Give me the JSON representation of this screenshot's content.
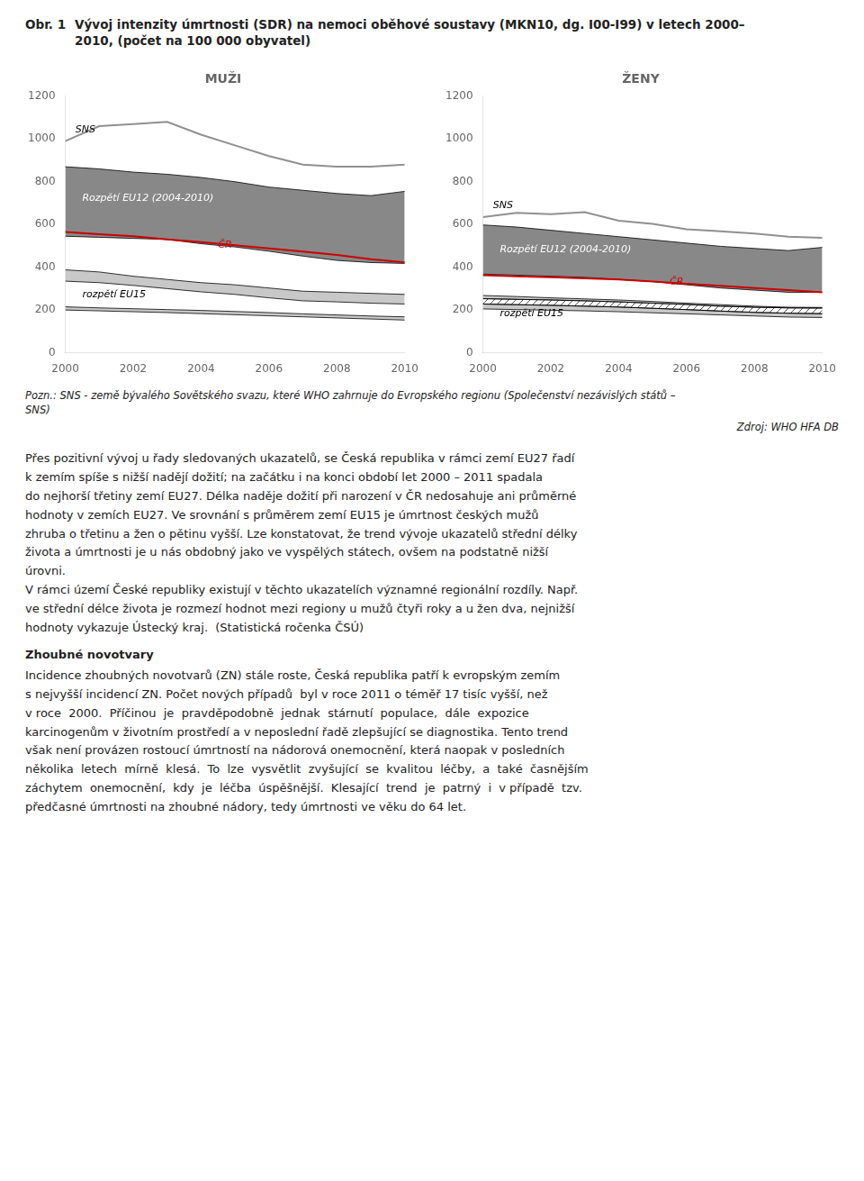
{
  "title": "Obr. 1",
  "subtitle": "Vývoj intenzity úmrtnosti (SDR) na nemoci oběhové soustavy (MKN10, dg. I00-I99) v letech 2000–\n2010, (počet na 100 000 obyvatel)",
  "chart_data": [
    {
      "type": "line",
      "title": "MUŽI",
      "x": [
        2000,
        2001,
        2002,
        2003,
        2004,
        2005,
        2006,
        2007,
        2008,
        2009,
        2010
      ],
      "xlim": [
        2000,
        2010
      ],
      "xticks": [
        2000,
        2002,
        2004,
        2006,
        2008,
        2010
      ],
      "ylim": [
        0,
        1200
      ],
      "yticks": [
        0,
        200,
        400,
        600,
        800,
        1000,
        1200
      ],
      "grid": false,
      "series": [
        {
          "type": "band",
          "color": "#888888",
          "upper": [
            870,
            860,
            845,
            835,
            820,
            800,
            775,
            760,
            745,
            735,
            755
          ],
          "lower": [
            545,
            540,
            535,
            530,
            510,
            495,
            475,
            452,
            432,
            422,
            418
          ]
        },
        {
          "type": "band",
          "color": "#c8c8c8",
          "upper": [
            388,
            378,
            358,
            343,
            328,
            318,
            303,
            288,
            283,
            278,
            273
          ],
          "lower": [
            335,
            328,
            315,
            300,
            285,
            273,
            257,
            243,
            238,
            232,
            228
          ]
        },
        {
          "type": "band",
          "color": "#c8c8c8",
          "upper": [
            215,
            210,
            206,
            202,
            198,
            193,
            188,
            182,
            177,
            172,
            168
          ],
          "lower": [
            200,
            196,
            192,
            188,
            183,
            178,
            173,
            168,
            163,
            158,
            153
          ]
        },
        {
          "type": "line",
          "color": "#909090",
          "values": [
            990,
            1060,
            1070,
            1080,
            1020,
            970,
            920,
            880,
            870,
            870,
            880
          ]
        },
        {
          "type": "line",
          "color": "#cc0000",
          "values": [
            565,
            555,
            545,
            530,
            518,
            503,
            488,
            473,
            458,
            438,
            423
          ]
        }
      ],
      "annotations": [
        {
          "text": "SNS",
          "x": 2000.3,
          "y": 1020,
          "color": "#000000"
        },
        {
          "text": "Rozpětí EU12 (2004-2010)",
          "x": 2000.5,
          "y": 700,
          "color": "#ffffff"
        },
        {
          "text": "ČR",
          "x": 2004.5,
          "y": 480,
          "color": "#cc0000"
        },
        {
          "text": "rozpětí EU15",
          "x": 2000.5,
          "y": 250,
          "color": "#000000"
        }
      ]
    },
    {
      "type": "line",
      "title": "ŽENY",
      "x": [
        2000,
        2001,
        2002,
        2003,
        2004,
        2005,
        2006,
        2007,
        2008,
        2009,
        2010
      ],
      "xlim": [
        2000,
        2010
      ],
      "xticks": [
        2000,
        2002,
        2004,
        2006,
        2008,
        2010
      ],
      "ylim": [
        0,
        1200
      ],
      "yticks": [
        0,
        200,
        400,
        600,
        800,
        1000,
        1200
      ],
      "grid": false,
      "series": [
        {
          "type": "band",
          "color": "#888888",
          "upper": [
            598,
            588,
            573,
            558,
            543,
            528,
            513,
            498,
            488,
            478,
            493
          ],
          "lower": [
            368,
            363,
            358,
            353,
            343,
            333,
            318,
            303,
            293,
            283,
            283
          ]
        },
        {
          "type": "band",
          "color": "#c8c8c8",
          "upper": [
            268,
            263,
            257,
            252,
            247,
            240,
            232,
            225,
            218,
            213,
            212
          ],
          "lower": [
            253,
            250,
            247,
            243,
            238,
            232,
            226,
            218,
            213,
            210,
            209
          ]
        },
        {
          "type": "hatched_band",
          "color": "#555555",
          "upper": [
            253,
            250,
            247,
            243,
            238,
            232,
            226,
            218,
            213,
            210,
            209
          ],
          "lower": [
            228,
            225,
            222,
            218,
            214,
            208,
            202,
            195,
            189,
            185,
            183
          ]
        },
        {
          "type": "band",
          "color": "#c8c8c8",
          "upper": [
            228,
            225,
            222,
            218,
            214,
            208,
            202,
            195,
            189,
            185,
            183
          ],
          "lower": [
            205,
            202,
            199,
            196,
            192,
            187,
            182,
            177,
            172,
            167,
            165
          ]
        },
        {
          "type": "line",
          "color": "#909090",
          "values": [
            635,
            655,
            648,
            658,
            618,
            603,
            578,
            568,
            558,
            543,
            538
          ]
        },
        {
          "type": "line",
          "color": "#cc0000",
          "values": [
            363,
            358,
            353,
            348,
            343,
            333,
            323,
            313,
            303,
            293,
            283
          ]
        }
      ],
      "annotations": [
        {
          "text": "SNS",
          "x": 2000.3,
          "y": 665,
          "color": "#000000"
        },
        {
          "text": "Rozpětí EU12 (2004-2010)",
          "x": 2000.5,
          "y": 460,
          "color": "#ffffff"
        },
        {
          "text": "ČR",
          "x": 2005.5,
          "y": 308,
          "color": "#cc0000"
        },
        {
          "text": "rozpětí EU15",
          "x": 2000.5,
          "y": 162,
          "color": "#000000"
        }
      ]
    }
  ],
  "note": "Pozn.: SNS - země bývalého Sovětského svazu, které WHO zahrnuje do Evropského regionu (Společenství nezávislých států –\nSNS)",
  "source": "Zdroj: WHO HFA DB",
  "body": [
    {
      "lines": [
        "Přes pozitivní vývoj u řady sledovaných ukazatelů, se Česká republika v rámci zemí EU27 řadí",
        "k zemím spíše s nižší nadějí dožití; na začátku i na konci období let 2000 – 2011 spadala",
        "do nejhorší třetiny zemí EU27. Délka naděje dožití při narození v ČR nedosahuje ani průměrné",
        "hodnoty v zemích EU27. Ve srovnání s průměrem zemí EU15 je úmrtnost českých mužů",
        "zhruba o třetinu a žen o pětinu vyšší. Lze konstatovat, že trend vývoje ukazatelů střední délky",
        "života a úmrtnosti je u nás obdobný jako ve vyspělých státech, ovšem na podstatně nižší",
        "úrovni.",
        "V rámci území České republiky existují v těchto ukazatelích významné regionální rozdíly. Např.",
        "ve střední délce života je rozmezí hodnot mezi regiony u mužů čtyři roky a u žen dva, nejnižší",
        "hodnoty vykazuje Ústecký kraj.  (Statistická ročenka ČSÚ)"
      ]
    },
    {
      "heading": "Zhoubné novotvary",
      "lines": [
        "Incidence zhoubných novotvarů (ZN) stále roste, Česká republika patří k evropským zemím",
        "s nejvyšší incidencí ZN. Počet nových případů  byl v roce 2011 o téměř 17 tisíc vyšší, než",
        "v roce  2000.  Příčinou  je  pravděpodobně  jednak  stárnutí  populace,  dále  expozice",
        "karcinogenům v životním prostředí a v neposlední řadě zlepšující se diagnostika. Tento trend",
        "však není provázen rostoucí úmrtností na nádorová onemocnění, která naopak v posledních",
        "několika  letech  mírně  klesá.  To  lze  vysvětlit  zvyšující  se  kvalitou  léčby,  a  také  časnějším",
        "záchytem  onemocnění,  kdy  je  léčba  úspěšnější.  Klesající  trend  je  patrný  i  v případě  tzv.",
        "předčasné úmrtnosti na zhoubné nádory, tedy úmrtnosti ve věku do 64 let."
      ]
    }
  ]
}
